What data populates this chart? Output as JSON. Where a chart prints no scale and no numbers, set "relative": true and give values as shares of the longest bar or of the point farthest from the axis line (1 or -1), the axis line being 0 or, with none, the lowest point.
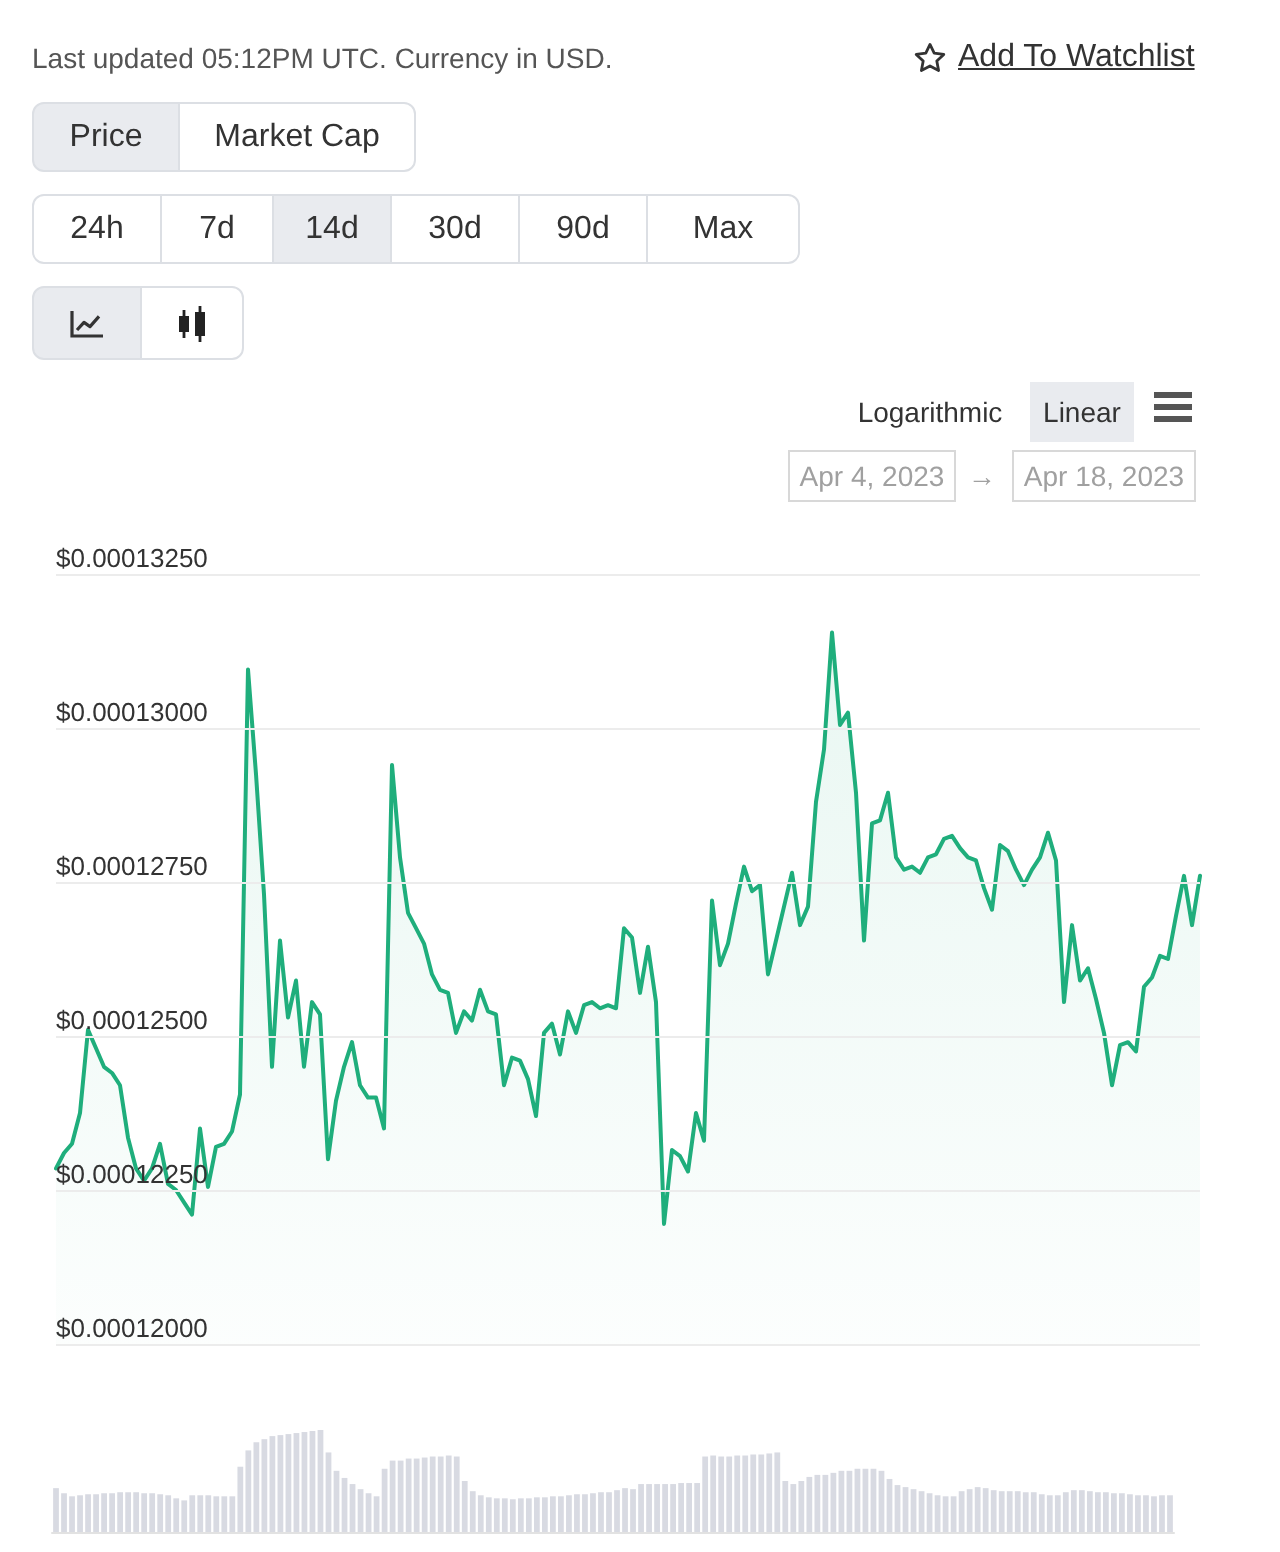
{
  "chart_data": [
    {
      "type": "area",
      "subtitle": "Last updated 05:12PM UTC. Currency in USD.",
      "annotations": [
        "Add To Watchlist",
        "Price",
        "Market Cap",
        "24h",
        "7d",
        "14d",
        "30d",
        "90d",
        "Max",
        "Logarithmic",
        "Linear",
        "Apr 4, 2023",
        "→",
        "Apr 18, 2023"
      ],
      "categories": [
        null,
        null,
        null,
        null,
        null,
        null,
        null,
        null,
        null,
        null,
        null,
        null,
        null,
        null,
        null,
        null,
        null,
        null,
        null,
        null,
        null,
        null,
        null,
        null,
        null,
        null,
        null,
        null,
        null,
        null,
        null,
        null,
        null,
        null,
        null,
        null,
        null,
        null,
        null,
        null,
        null,
        null,
        null,
        null,
        null,
        null,
        null,
        null,
        null,
        null,
        null,
        null,
        null,
        null,
        null,
        null,
        null,
        null,
        null,
        null,
        null,
        null,
        null,
        null,
        null,
        null,
        null,
        null,
        null,
        null,
        null,
        null,
        null,
        null,
        null,
        null,
        null,
        null,
        null,
        null,
        null,
        null,
        null,
        null,
        null,
        null,
        null,
        null,
        null,
        null,
        null,
        null,
        null,
        null,
        null,
        null,
        null,
        null,
        null,
        null,
        null,
        null,
        null,
        null,
        null,
        null,
        null,
        null,
        null,
        null,
        null,
        null,
        null,
        null,
        null,
        null,
        null,
        null,
        null,
        null,
        null,
        null,
        null,
        null,
        null,
        null,
        null,
        null,
        null,
        null,
        null,
        null,
        null,
        null,
        null,
        null,
        null,
        null,
        null,
        null,
        null,
        null,
        null,
        null
      ],
      "values": [
        0.00012285,
        0.0001231,
        0.00012325,
        0.00012375,
        0.0001251,
        0.0001248,
        0.0001245,
        0.0001244,
        0.0001242,
        0.00012335,
        0.00012285,
        0.00012265,
        0.00012285,
        0.00012325,
        0.0001226,
        0.0001225,
        0.0001223,
        0.0001221,
        0.0001235,
        0.00012255,
        0.0001232,
        0.00012325,
        0.00012345,
        0.00012405,
        0.00013095,
        0.00012925,
        0.0001273,
        0.0001245,
        0.00012655,
        0.0001253,
        0.0001259,
        0.0001245,
        0.00012555,
        0.00012535,
        0.000123,
        0.00012395,
        0.0001245,
        0.0001249,
        0.0001242,
        0.000124,
        0.000124,
        0.0001235,
        0.0001294,
        0.0001279,
        0.000127,
        0.00012675,
        0.0001265,
        0.000126,
        0.00012575,
        0.0001257,
        0.00012505,
        0.0001254,
        0.00012525,
        0.00012575,
        0.0001254,
        0.00012535,
        0.0001242,
        0.00012465,
        0.0001246,
        0.0001243,
        0.0001237,
        0.00012505,
        0.0001252,
        0.0001247,
        0.0001254,
        0.00012505,
        0.0001255,
        0.00012555,
        0.00012545,
        0.0001255,
        0.00012545,
        0.00012675,
        0.0001266,
        0.0001257,
        0.00012645,
        0.00012555,
        0.00012195,
        0.00012315,
        0.00012305,
        0.0001228,
        0.00012375,
        0.0001233,
        0.0001272,
        0.00012615,
        0.0001265,
        0.00012715,
        0.00012775,
        0.00012735,
        0.00012745,
        0.000126,
        0.00012655,
        0.0001271,
        0.00012765,
        0.0001268,
        0.0001271,
        0.0001288,
        0.00012965,
        0.00013155,
        0.00013005,
        0.00013025,
        0.00012895,
        0.00012655,
        0.00012845,
        0.0001285,
        0.00012895,
        0.0001279,
        0.0001277,
        0.00012775,
        0.00012765,
        0.0001279,
        0.00012795,
        0.0001282,
        0.00012825,
        0.00012805,
        0.0001279,
        0.00012785,
        0.0001274,
        0.00012705,
        0.0001281,
        0.000128,
        0.0001277,
        0.00012745,
        0.0001277,
        0.0001279,
        0.0001283,
        0.00012785,
        0.00012555,
        0.0001268,
        0.0001259,
        0.0001261,
        0.0001256,
        0.00012505,
        0.0001242,
        0.00012485,
        0.0001249,
        0.00012475,
        0.0001258,
        0.00012595,
        0.0001263,
        0.00012625,
        0.00012695,
        0.0001276,
        0.0001268,
        0.0001276
      ],
      "color": "#1fae7c",
      "marker": "none",
      "line_style": "solid",
      "ylim": [
        0.00012,
        0.0001325
      ],
      "yticks": [
        {
          "value": 0.00012,
          "label": "$0.00012000"
        },
        {
          "value": 0.0001225,
          "label": "$0.00012250"
        },
        {
          "value": 0.000125,
          "label": "$0.00012500"
        },
        {
          "value": 0.0001275,
          "label": "$0.00012750"
        },
        {
          "value": 0.00013,
          "label": "$0.00013000"
        },
        {
          "value": 0.0001325,
          "label": "$0.00013250"
        }
      ],
      "grid": "y",
      "tick_labels": "y"
    },
    {
      "type": "bar",
      "relative": true,
      "categories": [
        null,
        null,
        null,
        null,
        null,
        null,
        null,
        null,
        null,
        null,
        null,
        null,
        null,
        null,
        null,
        null,
        null,
        null,
        null,
        null,
        null,
        null,
        null,
        null,
        null,
        null,
        null,
        null,
        null,
        null,
        null,
        null,
        null,
        null,
        null,
        null,
        null,
        null,
        null,
        null,
        null,
        null,
        null,
        null,
        null,
        null,
        null,
        null,
        null,
        null,
        null,
        null,
        null,
        null,
        null,
        null,
        null,
        null,
        null,
        null,
        null,
        null,
        null,
        null,
        null,
        null,
        null,
        null,
        null,
        null,
        null,
        null,
        null,
        null,
        null,
        null,
        null,
        null,
        null,
        null,
        null,
        null,
        null,
        null,
        null,
        null,
        null,
        null,
        null,
        null,
        null,
        null,
        null,
        null,
        null,
        null,
        null,
        null,
        null,
        null,
        null,
        null,
        null,
        null,
        null,
        null,
        null,
        null,
        null,
        null,
        null,
        null,
        null,
        null,
        null,
        null,
        null,
        null,
        null,
        null,
        null,
        null,
        null,
        null,
        null,
        null,
        null,
        null,
        null,
        null,
        null,
        null,
        null,
        null,
        null,
        null,
        null,
        null,
        null,
        null
      ],
      "values": [
        0.43,
        0.38,
        0.35,
        0.36,
        0.37,
        0.37,
        0.38,
        0.38,
        0.39,
        0.39,
        0.39,
        0.38,
        0.38,
        0.37,
        0.36,
        0.33,
        0.31,
        0.36,
        0.36,
        0.36,
        0.35,
        0.35,
        0.35,
        0.64,
        0.8,
        0.88,
        0.91,
        0.94,
        0.95,
        0.96,
        0.97,
        0.98,
        0.99,
        1,
        0.78,
        0.6,
        0.53,
        0.47,
        0.42,
        0.38,
        0.35,
        0.62,
        0.7,
        0.7,
        0.72,
        0.72,
        0.73,
        0.74,
        0.74,
        0.75,
        0.74,
        0.5,
        0.4,
        0.36,
        0.34,
        0.33,
        0.33,
        0.32,
        0.33,
        0.33,
        0.34,
        0.34,
        0.35,
        0.35,
        0.36,
        0.37,
        0.37,
        0.38,
        0.39,
        0.39,
        0.41,
        0.43,
        0.42,
        0.47,
        0.47,
        0.47,
        0.47,
        0.47,
        0.48,
        0.48,
        0.48,
        0.74,
        0.75,
        0.74,
        0.74,
        0.75,
        0.75,
        0.76,
        0.76,
        0.77,
        0.78,
        0.5,
        0.47,
        0.5,
        0.54,
        0.56,
        0.56,
        0.58,
        0.6,
        0.6,
        0.62,
        0.62,
        0.62,
        0.6,
        0.52,
        0.46,
        0.44,
        0.42,
        0.4,
        0.38,
        0.36,
        0.35,
        0.35,
        0.4,
        0.42,
        0.44,
        0.43,
        0.41,
        0.4,
        0.4,
        0.4,
        0.39,
        0.39,
        0.37,
        0.36,
        0.36,
        0.39,
        0.41,
        0.41,
        0.4,
        0.39,
        0.39,
        0.38,
        0.38,
        0.37,
        0.36,
        0.36,
        0.35,
        0.36,
        0.36
      ],
      "color": "#d8dae2",
      "tick_labels": false
    }
  ]
}
